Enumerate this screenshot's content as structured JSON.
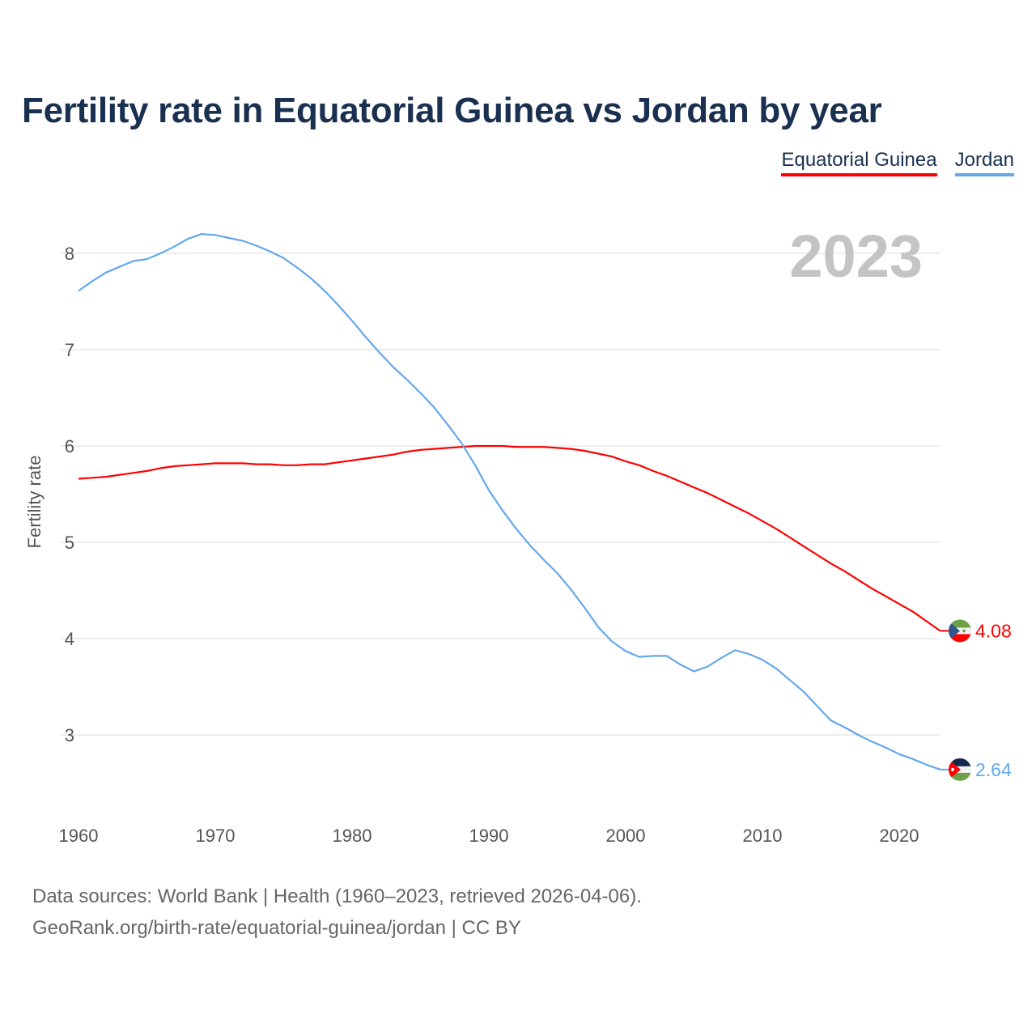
{
  "chart_data": {
    "type": "line",
    "title": "Fertility rate in Equatorial Guinea vs Jordan by year",
    "xlabel": "",
    "ylabel": "Fertility rate",
    "xlim": [
      1960,
      2023
    ],
    "ylim": [
      2.4,
      8.5
    ],
    "xticks": [
      1960,
      1970,
      1980,
      1990,
      2000,
      2010,
      2020
    ],
    "yticks": [
      3,
      4,
      5,
      6,
      7,
      8
    ],
    "grid": true,
    "legend_position": "top-right",
    "year_annotation": "2023",
    "x": [
      1960,
      1961,
      1962,
      1963,
      1964,
      1965,
      1966,
      1967,
      1968,
      1969,
      1970,
      1971,
      1972,
      1973,
      1974,
      1975,
      1976,
      1977,
      1978,
      1979,
      1980,
      1981,
      1982,
      1983,
      1984,
      1985,
      1986,
      1987,
      1988,
      1989,
      1990,
      1991,
      1992,
      1993,
      1994,
      1995,
      1996,
      1997,
      1998,
      1999,
      2000,
      2001,
      2002,
      2003,
      2004,
      2005,
      2006,
      2007,
      2008,
      2009,
      2010,
      2011,
      2012,
      2013,
      2014,
      2015,
      2016,
      2017,
      2018,
      2019,
      2020,
      2021,
      2022,
      2023
    ],
    "series": [
      {
        "name": "Equatorial Guinea",
        "color": "#ff0000",
        "end_label": "4.08",
        "values": [
          5.66,
          5.67,
          5.68,
          5.7,
          5.72,
          5.74,
          5.77,
          5.79,
          5.8,
          5.81,
          5.82,
          5.82,
          5.82,
          5.81,
          5.81,
          5.8,
          5.8,
          5.81,
          5.81,
          5.83,
          5.85,
          5.87,
          5.89,
          5.91,
          5.94,
          5.96,
          5.97,
          5.98,
          5.99,
          6.0,
          6.0,
          6.0,
          5.99,
          5.99,
          5.99,
          5.98,
          5.97,
          5.95,
          5.92,
          5.89,
          5.84,
          5.8,
          5.74,
          5.69,
          5.63,
          5.57,
          5.51,
          5.44,
          5.37,
          5.3,
          5.22,
          5.14,
          5.05,
          4.96,
          4.87,
          4.78,
          4.7,
          4.61,
          4.52,
          4.44,
          4.36,
          4.28,
          4.18,
          4.08
        ]
      },
      {
        "name": "Jordan",
        "color": "#64a8ec",
        "end_label": "2.64",
        "values": [
          7.61,
          7.71,
          7.8,
          7.86,
          7.92,
          7.94,
          8.0,
          8.07,
          8.15,
          8.2,
          8.19,
          8.16,
          8.13,
          8.08,
          8.02,
          7.95,
          7.85,
          7.74,
          7.61,
          7.46,
          7.3,
          7.13,
          6.97,
          6.82,
          6.69,
          6.55,
          6.4,
          6.22,
          6.03,
          5.8,
          5.54,
          5.33,
          5.14,
          4.97,
          4.82,
          4.68,
          4.51,
          4.32,
          4.12,
          3.97,
          3.87,
          3.81,
          3.82,
          3.82,
          3.73,
          3.66,
          3.71,
          3.8,
          3.88,
          3.84,
          3.78,
          3.69,
          3.57,
          3.45,
          3.3,
          3.15,
          3.08,
          3.0,
          2.93,
          2.87,
          2.8,
          2.75,
          2.69,
          2.64
        ]
      }
    ]
  },
  "footer": {
    "line1": "Data sources: World Bank | Health (1960–2023, retrieved 2026-04-06).",
    "line2": "GeoRank.org/birth-rate/equatorial-guinea/jordan | CC BY"
  }
}
